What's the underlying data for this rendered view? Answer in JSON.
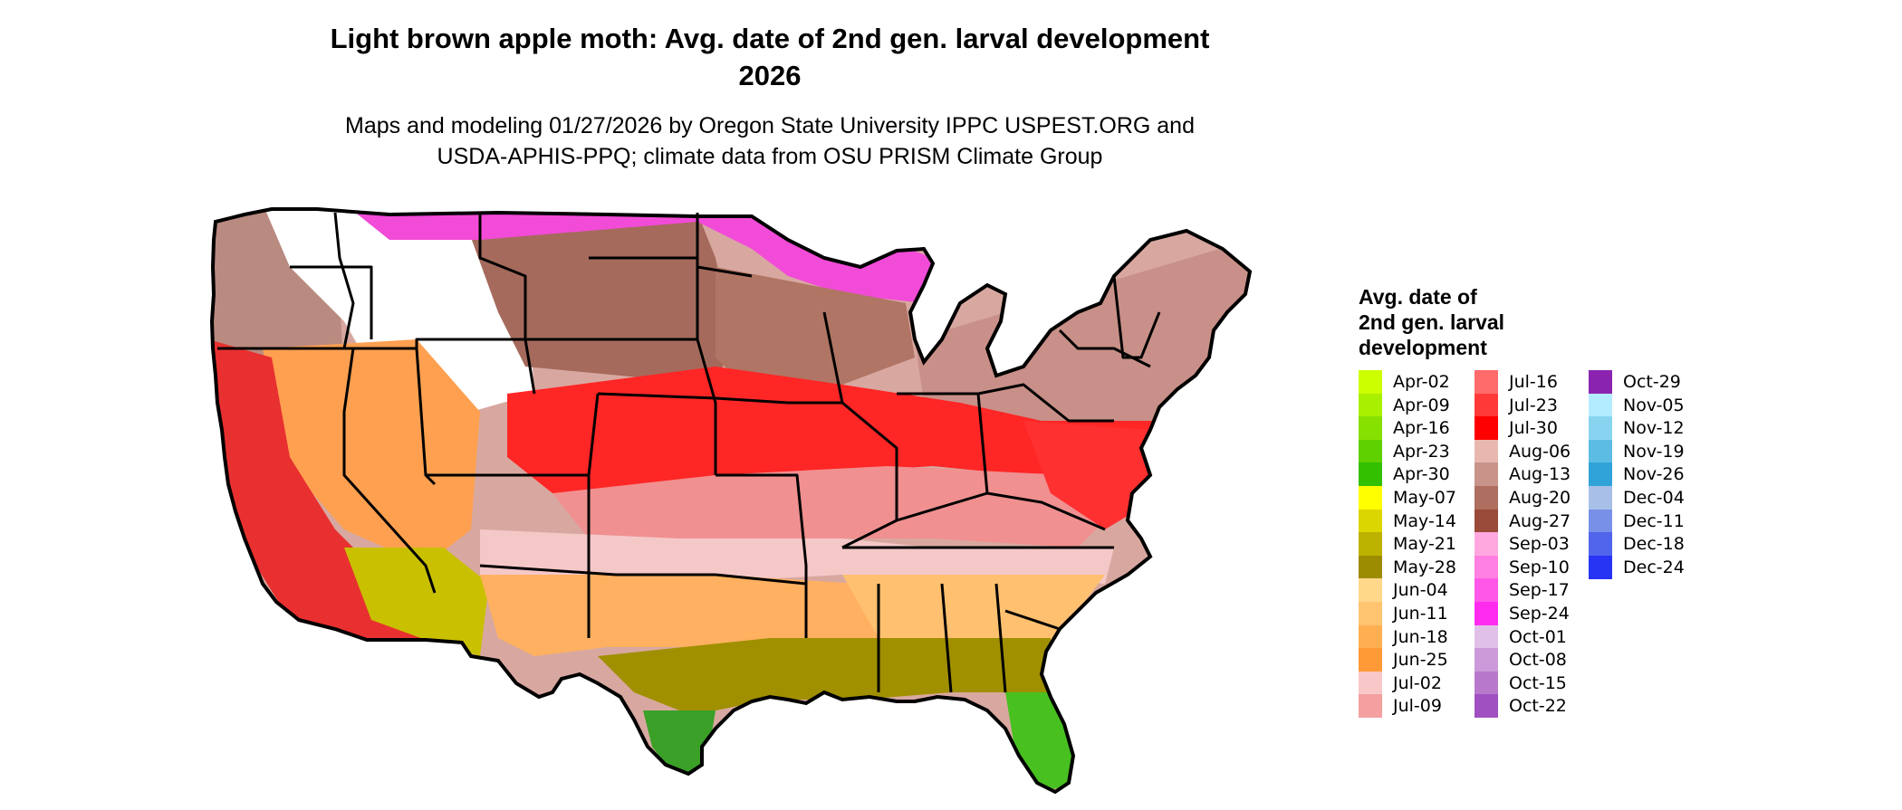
{
  "header": {
    "title_line1": "Light brown apple moth: Avg. date of 2nd gen. larval development",
    "title_line2": "2026",
    "subtitle_line1": "Maps and modeling 01/27/2026 by Oregon State University IPPC USPEST.ORG and",
    "subtitle_line2": "USDA-APHIS-PPQ; climate data from OSU PRISM Climate Group"
  },
  "map": {
    "region": "contiguous-united-states",
    "border_color": "#000000",
    "zones": [
      {
        "name": "pacific-northwest",
        "color": "#b98a80"
      },
      {
        "name": "northern-rockies",
        "color": "#ffffff"
      },
      {
        "name": "northern-plains",
        "color": "#a56a5c"
      },
      {
        "name": "great-lakes-north",
        "color": "#f24bd8"
      },
      {
        "name": "upper-midwest",
        "color": "#b07564"
      },
      {
        "name": "central-plains-band",
        "color": "#ff2626"
      },
      {
        "name": "ohio-valley",
        "color": "#f09090"
      },
      {
        "name": "northeast",
        "color": "#c89088"
      },
      {
        "name": "mid-atlantic",
        "color": "#ff3030"
      },
      {
        "name": "california-coast",
        "color": "#ffa050"
      },
      {
        "name": "great-basin",
        "color": "#e83030"
      },
      {
        "name": "southwest-desert",
        "color": "#c9c000"
      },
      {
        "name": "southern-plains",
        "color": "#f5c8c8"
      },
      {
        "name": "texas-oklahoma",
        "color": "#ffb060"
      },
      {
        "name": "southeast",
        "color": "#ffc070"
      },
      {
        "name": "gulf-coast",
        "color": "#a09000"
      },
      {
        "name": "south-texas-tip",
        "color": "#3aa028"
      },
      {
        "name": "florida",
        "color": "#48c020"
      }
    ]
  },
  "legend": {
    "title_line1": "Avg. date of",
    "title_line2": "2nd gen. larval",
    "title_line3": "development",
    "columns": [
      [
        {
          "label": "Apr-02",
          "color": "#ccff00"
        },
        {
          "label": "Apr-09",
          "color": "#a8f000"
        },
        {
          "label": "Apr-16",
          "color": "#86e000"
        },
        {
          "label": "Apr-23",
          "color": "#5fd000"
        },
        {
          "label": "Apr-30",
          "color": "#33c000"
        },
        {
          "label": "May-07",
          "color": "#ffff00"
        },
        {
          "label": "May-14",
          "color": "#dcd600"
        },
        {
          "label": "May-21",
          "color": "#bcb200"
        },
        {
          "label": "May-28",
          "color": "#9c8c00"
        },
        {
          "label": "Jun-04",
          "color": "#ffd88a"
        },
        {
          "label": "Jun-11",
          "color": "#ffc470"
        },
        {
          "label": "Jun-18",
          "color": "#ffae52"
        },
        {
          "label": "Jun-25",
          "color": "#ff9a36"
        },
        {
          "label": "Jul-02",
          "color": "#f8c8c8"
        },
        {
          "label": "Jul-09",
          "color": "#f4a0a0"
        }
      ],
      [
        {
          "label": "Jul-16",
          "color": "#ff6a6a"
        },
        {
          "label": "Jul-23",
          "color": "#ff3838"
        },
        {
          "label": "Jul-30",
          "color": "#ff0000"
        },
        {
          "label": "Aug-06",
          "color": "#e8b8b0"
        },
        {
          "label": "Aug-13",
          "color": "#c8948a"
        },
        {
          "label": "Aug-20",
          "color": "#ae6e60"
        },
        {
          "label": "Aug-27",
          "color": "#9a4a38"
        },
        {
          "label": "Sep-03",
          "color": "#ffa8e0"
        },
        {
          "label": "Sep-10",
          "color": "#ff80e0"
        },
        {
          "label": "Sep-17",
          "color": "#ff58e8"
        },
        {
          "label": "Sep-24",
          "color": "#ff2cf0"
        },
        {
          "label": "Oct-01",
          "color": "#e0c0e8"
        },
        {
          "label": "Oct-08",
          "color": "#cc9ad8"
        },
        {
          "label": "Oct-15",
          "color": "#b878cc"
        },
        {
          "label": "Oct-22",
          "color": "#a050c0"
        }
      ],
      [
        {
          "label": "Oct-29",
          "color": "#8a24b0"
        },
        {
          "label": "Nov-05",
          "color": "#b4ecff"
        },
        {
          "label": "Nov-12",
          "color": "#88d4f0"
        },
        {
          "label": "Nov-19",
          "color": "#5cbce4"
        },
        {
          "label": "Nov-26",
          "color": "#30a4d8"
        },
        {
          "label": "Dec-04",
          "color": "#a8c0e8"
        },
        {
          "label": "Dec-11",
          "color": "#7890e8"
        },
        {
          "label": "Dec-18",
          "color": "#5064ec"
        },
        {
          "label": "Dec-24",
          "color": "#2834f4"
        }
      ]
    ]
  }
}
